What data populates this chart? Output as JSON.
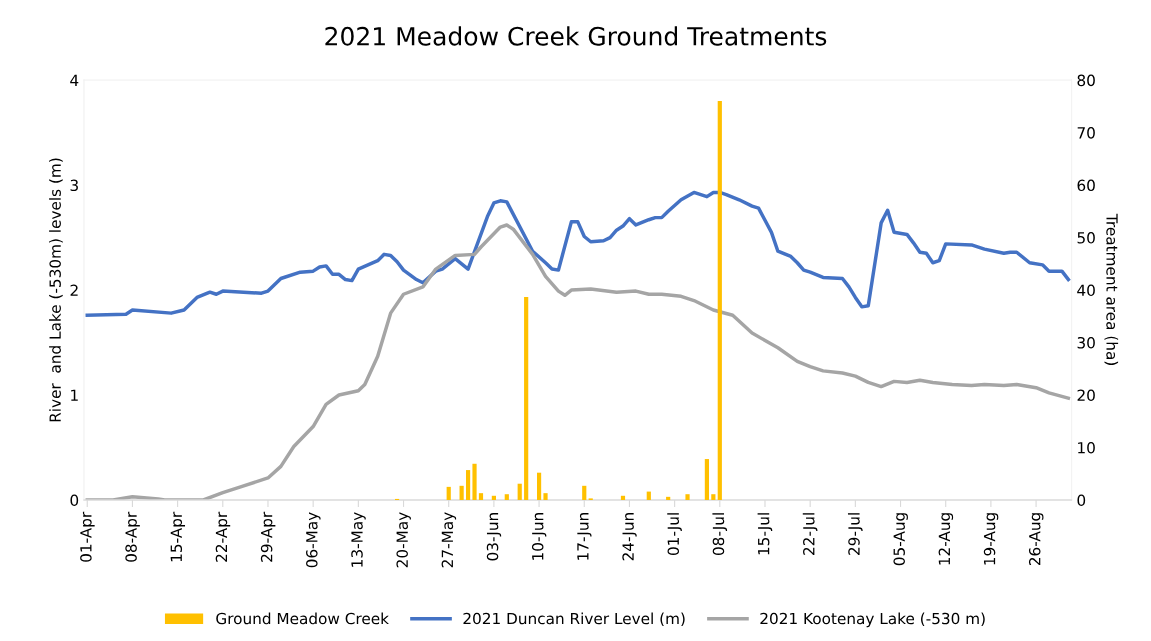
{
  "chart_data": {
    "type": "line",
    "title": "2021 Meadow Creek Ground Treatments",
    "ylabel": "River  and Lake (-530m) levels (m)",
    "y2label": "Treatment area (ha)",
    "xlim": [
      "2021-03-31T12:00",
      "2021-08-31T12:00"
    ],
    "xticks": [
      {
        "value": "2021-04-01",
        "label": "01-Apr"
      },
      {
        "value": "2021-04-08",
        "label": "08-Apr"
      },
      {
        "value": "2021-04-15",
        "label": "15-Apr"
      },
      {
        "value": "2021-04-22",
        "label": "22-Apr"
      },
      {
        "value": "2021-04-29",
        "label": "29-Apr"
      },
      {
        "value": "2021-05-06",
        "label": "06-May"
      },
      {
        "value": "2021-05-13",
        "label": "13-May"
      },
      {
        "value": "2021-05-20",
        "label": "20-May"
      },
      {
        "value": "2021-05-27",
        "label": "27-May"
      },
      {
        "value": "2021-06-03",
        "label": "03-Jun"
      },
      {
        "value": "2021-06-10",
        "label": "10-Jun"
      },
      {
        "value": "2021-06-17",
        "label": "17-Jun"
      },
      {
        "value": "2021-06-24",
        "label": "24-Jun"
      },
      {
        "value": "2021-07-01",
        "label": "01-Jul"
      },
      {
        "value": "2021-07-08",
        "label": "08-Jul"
      },
      {
        "value": "2021-07-15",
        "label": "15-Jul"
      },
      {
        "value": "2021-07-22",
        "label": "22-Jul"
      },
      {
        "value": "2021-07-29",
        "label": "29-Jul"
      },
      {
        "value": "2021-08-05",
        "label": "05-Aug"
      },
      {
        "value": "2021-08-12",
        "label": "12-Aug"
      },
      {
        "value": "2021-08-19",
        "label": "19-Aug"
      },
      {
        "value": "2021-08-26",
        "label": "26-Aug"
      }
    ],
    "ylim": [
      0,
      4
    ],
    "yticks": [
      0,
      1,
      2,
      3,
      4
    ],
    "y2lim": [
      0,
      80
    ],
    "y2ticks": [
      0,
      10,
      20,
      30,
      40,
      50,
      60,
      70,
      80
    ],
    "grid": false,
    "legend": "bottom",
    "marker": "none",
    "line_style": "solid",
    "series": [
      {
        "name": "Ground Meadow Creek",
        "type": "bar",
        "axis": "y2",
        "color": "#ffc000",
        "x": [
          "2021-05-19",
          "2021-05-27",
          "2021-05-29",
          "2021-05-30",
          "2021-05-31",
          "2021-06-01",
          "2021-06-03",
          "2021-06-05",
          "2021-06-07",
          "2021-06-08",
          "2021-06-10",
          "2021-06-11",
          "2021-06-17",
          "2021-06-18",
          "2021-06-23",
          "2021-06-27",
          "2021-06-30",
          "2021-07-03",
          "2021-07-06",
          "2021-07-07",
          "2021-07-08"
        ],
        "values": [
          0.2,
          2.5,
          2.7,
          5.7,
          6.9,
          1.3,
          0.8,
          1.1,
          3.1,
          38.7,
          5.2,
          1.3,
          2.7,
          0.3,
          0.8,
          1.6,
          0.6,
          1.1,
          7.8,
          1.1,
          76.0
        ]
      },
      {
        "name": "2021 Duncan River Level (m)",
        "color": "#4472c4",
        "x": [
          "2021-04-01",
          "2021-04-07",
          "2021-04-08",
          "2021-04-14",
          "2021-04-16",
          "2021-04-18",
          "2021-04-20",
          "2021-04-21",
          "2021-04-22",
          "2021-04-28",
          "2021-04-29",
          "2021-05-01",
          "2021-05-04",
          "2021-05-06",
          "2021-05-07",
          "2021-05-08",
          "2021-05-09",
          "2021-05-10",
          "2021-05-11",
          "2021-05-12",
          "2021-05-13",
          "2021-05-16",
          "2021-05-17",
          "2021-05-18",
          "2021-05-19",
          "2021-05-20",
          "2021-05-22",
          "2021-05-23",
          "2021-05-25",
          "2021-05-26",
          "2021-05-28",
          "2021-05-30",
          "2021-06-02",
          "2021-06-03",
          "2021-06-04",
          "2021-06-05",
          "2021-06-09",
          "2021-06-11",
          "2021-06-12",
          "2021-06-13",
          "2021-06-15",
          "2021-06-16",
          "2021-06-17",
          "2021-06-18",
          "2021-06-20",
          "2021-06-21",
          "2021-06-22",
          "2021-06-23",
          "2021-06-24",
          "2021-06-25",
          "2021-06-27",
          "2021-06-28",
          "2021-06-29",
          "2021-06-30",
          "2021-07-02",
          "2021-07-04",
          "2021-07-06",
          "2021-07-07",
          "2021-07-08",
          "2021-07-09",
          "2021-07-11",
          "2021-07-13",
          "2021-07-14",
          "2021-07-16",
          "2021-07-17",
          "2021-07-19",
          "2021-07-20",
          "2021-07-21",
          "2021-07-22",
          "2021-07-24",
          "2021-07-27",
          "2021-07-28",
          "2021-07-29",
          "2021-07-30",
          "2021-07-31",
          "2021-08-02",
          "2021-08-03",
          "2021-08-04",
          "2021-08-06",
          "2021-08-07",
          "2021-08-08",
          "2021-08-09",
          "2021-08-10",
          "2021-08-11",
          "2021-08-12",
          "2021-08-16",
          "2021-08-18",
          "2021-08-21",
          "2021-08-22",
          "2021-08-23",
          "2021-08-25",
          "2021-08-27",
          "2021-08-28",
          "2021-08-30",
          "2021-08-31"
        ],
        "values": [
          1.76,
          1.77,
          1.81,
          1.78,
          1.81,
          1.93,
          1.98,
          1.96,
          1.99,
          1.97,
          1.99,
          2.11,
          2.17,
          2.18,
          2.22,
          2.23,
          2.15,
          2.15,
          2.1,
          2.09,
          2.2,
          2.28,
          2.34,
          2.33,
          2.27,
          2.19,
          2.1,
          2.07,
          2.18,
          2.2,
          2.3,
          2.2,
          2.7,
          2.83,
          2.85,
          2.84,
          2.37,
          2.26,
          2.2,
          2.19,
          2.65,
          2.65,
          2.51,
          2.46,
          2.47,
          2.5,
          2.57,
          2.61,
          2.68,
          2.62,
          2.67,
          2.69,
          2.69,
          2.75,
          2.86,
          2.93,
          2.89,
          2.93,
          2.93,
          2.91,
          2.86,
          2.8,
          2.78,
          2.55,
          2.37,
          2.32,
          2.26,
          2.19,
          2.17,
          2.12,
          2.11,
          2.03,
          1.93,
          1.84,
          1.85,
          2.64,
          2.76,
          2.55,
          2.53,
          2.45,
          2.36,
          2.35,
          2.26,
          2.28,
          2.44,
          2.43,
          2.39,
          2.35,
          2.36,
          2.36,
          2.26,
          2.24,
          2.18,
          2.18,
          2.1
        ]
      },
      {
        "name": "2021 Kootenay Lake (-530 m)",
        "color": "#a5a5a5",
        "x": [
          "2021-04-01",
          "2021-04-05",
          "2021-04-08",
          "2021-04-12",
          "2021-04-13",
          "2021-04-19",
          "2021-04-22",
          "2021-04-25",
          "2021-04-29",
          "2021-05-01",
          "2021-05-03",
          "2021-05-06",
          "2021-05-08",
          "2021-05-10",
          "2021-05-13",
          "2021-05-14",
          "2021-05-16",
          "2021-05-18",
          "2021-05-20",
          "2021-05-23",
          "2021-05-25",
          "2021-05-28",
          "2021-05-31",
          "2021-06-01",
          "2021-06-04",
          "2021-06-05",
          "2021-06-06",
          "2021-06-09",
          "2021-06-11",
          "2021-06-13",
          "2021-06-14",
          "2021-06-15",
          "2021-06-18",
          "2021-06-22",
          "2021-06-25",
          "2021-06-27",
          "2021-06-29",
          "2021-07-02",
          "2021-07-04",
          "2021-07-07",
          "2021-07-10",
          "2021-07-13",
          "2021-07-17",
          "2021-07-20",
          "2021-07-22",
          "2021-07-24",
          "2021-07-27",
          "2021-07-29",
          "2021-07-31",
          "2021-08-02",
          "2021-08-04",
          "2021-08-06",
          "2021-08-08",
          "2021-08-10",
          "2021-08-13",
          "2021-08-16",
          "2021-08-18",
          "2021-08-21",
          "2021-08-23",
          "2021-08-26",
          "2021-08-28",
          "2021-08-31"
        ],
        "values": [
          0.0,
          0.0,
          0.03,
          0.01,
          0.0,
          0.0,
          0.07,
          0.13,
          0.21,
          0.32,
          0.51,
          0.7,
          0.91,
          1.0,
          1.04,
          1.1,
          1.37,
          1.78,
          1.96,
          2.03,
          2.2,
          2.33,
          2.34,
          2.41,
          2.6,
          2.62,
          2.58,
          2.34,
          2.13,
          1.99,
          1.95,
          2.0,
          2.01,
          1.98,
          1.99,
          1.96,
          1.96,
          1.94,
          1.9,
          1.81,
          1.76,
          1.59,
          1.45,
          1.32,
          1.27,
          1.23,
          1.21,
          1.18,
          1.12,
          1.08,
          1.13,
          1.12,
          1.14,
          1.12,
          1.1,
          1.09,
          1.1,
          1.09,
          1.1,
          1.07,
          1.02,
          0.97
        ]
      }
    ]
  }
}
